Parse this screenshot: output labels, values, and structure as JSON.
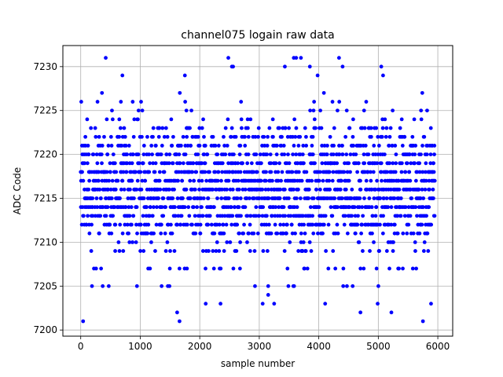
{
  "chart_data": {
    "type": "scatter",
    "title": "channel075 logain raw data",
    "xlabel": "sample number",
    "ylabel": "ADC Code",
    "xlim": [
      -300,
      6250
    ],
    "ylim": [
      7199.3,
      7232.4
    ],
    "xticks": [
      0,
      1000,
      2000,
      3000,
      4000,
      5000,
      6000
    ],
    "yticks": [
      7200,
      7205,
      7210,
      7215,
      7220,
      7225,
      7230
    ],
    "grid": true,
    "marker_color": "#0000ff",
    "series": [
      {
        "num_samples": 5950,
        "x_start": 0,
        "x_step": 1,
        "codes": [
          7203,
          7205,
          7207,
          7209,
          7210,
          7211,
          7212,
          7213,
          7214,
          7215,
          7216,
          7217,
          7218,
          7219,
          7220,
          7221,
          7222,
          7223,
          7224,
          7225,
          7226,
          7227
        ],
        "code_weights": [
          0.4,
          1,
          2,
          3,
          1.5,
          9,
          11,
          13,
          14,
          16,
          16,
          15,
          14,
          12,
          10,
          8,
          6,
          4,
          2,
          1.5,
          1,
          0.6
        ],
        "outliers": [
          {
            "x": 40,
            "y": 7201
          },
          {
            "x": 420,
            "y": 7231
          },
          {
            "x": 700,
            "y": 7229
          },
          {
            "x": 1620,
            "y": 7202
          },
          {
            "x": 1660,
            "y": 7201
          },
          {
            "x": 1750,
            "y": 7229
          },
          {
            "x": 2480,
            "y": 7231
          },
          {
            "x": 2540,
            "y": 7230
          },
          {
            "x": 2560,
            "y": 7230
          },
          {
            "x": 3150,
            "y": 7204
          },
          {
            "x": 3250,
            "y": 7203
          },
          {
            "x": 3430,
            "y": 7230
          },
          {
            "x": 3580,
            "y": 7231
          },
          {
            "x": 3620,
            "y": 7231
          },
          {
            "x": 3700,
            "y": 7231
          },
          {
            "x": 3850,
            "y": 7230
          },
          {
            "x": 3980,
            "y": 7229
          },
          {
            "x": 4340,
            "y": 7231
          },
          {
            "x": 4400,
            "y": 7230
          },
          {
            "x": 4700,
            "y": 7202
          },
          {
            "x": 5050,
            "y": 7230
          },
          {
            "x": 5080,
            "y": 7229
          },
          {
            "x": 5220,
            "y": 7202
          },
          {
            "x": 5750,
            "y": 7201
          }
        ]
      }
    ]
  }
}
